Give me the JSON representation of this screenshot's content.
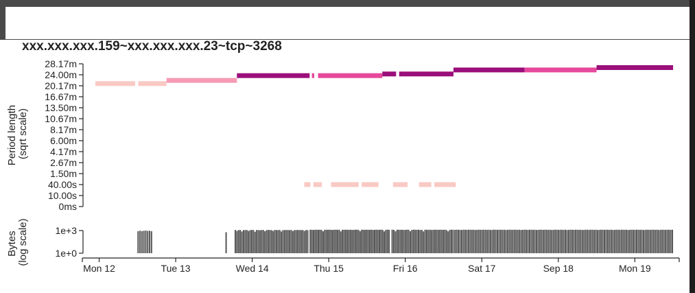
{
  "header": {
    "title": "xxx.xxx.xxx.159~xxx.xxx.xxx.23~tcp~3268"
  },
  "chart_data": [
    {
      "type": "timeline-segments",
      "ylabel": [
        "Period length",
        "(sqrt scale)"
      ],
      "yscale": "sqrt",
      "yticks": [
        "28.17m",
        "24.00m",
        "20.17m",
        "16.67m",
        "13.50m",
        "10.67m",
        "8.17m",
        "6.00m",
        "4.17m",
        "2.67m",
        "1.50m",
        "40.00s",
        "10.00s",
        "0ms"
      ],
      "x_range": [
        -0.22,
        7.58
      ],
      "segments": [
        {
          "x0": -0.05,
          "x1": 0.47,
          "y": "20.9m",
          "color": "#f9c9c4"
        },
        {
          "x0": 0.51,
          "x1": 0.88,
          "y": "20.9m",
          "color": "#f9c9c4"
        },
        {
          "x0": 0.88,
          "x1": 1.8,
          "y": "22.0m",
          "color": "#f69ab4"
        },
        {
          "x0": 1.8,
          "x1": 2.75,
          "y": "23.7m",
          "color": "#9b0f7a"
        },
        {
          "x0": 2.78,
          "x1": 2.81,
          "y": "23.7m",
          "color": "#e6489b"
        },
        {
          "x0": 2.86,
          "x1": 3.7,
          "y": "23.7m",
          "color": "#e6489b"
        },
        {
          "x0": 3.7,
          "x1": 3.88,
          "y": "24.3m",
          "color": "#9b0f7a"
        },
        {
          "x0": 3.92,
          "x1": 4.63,
          "y": "24.3m",
          "color": "#9b0f7a"
        },
        {
          "x0": 4.63,
          "x1": 5.56,
          "y": "25.8m",
          "color": "#9b0f7a"
        },
        {
          "x0": 5.56,
          "x1": 6.5,
          "y": "25.8m",
          "color": "#e6489b"
        },
        {
          "x0": 6.5,
          "x1": 7.5,
          "y": "26.7m",
          "color": "#9b0f7a"
        },
        {
          "x0": 2.68,
          "x1": 2.76,
          "y": "40.00s",
          "color": "#f9c9c4"
        },
        {
          "x0": 2.8,
          "x1": 2.91,
          "y": "40.00s",
          "color": "#f9c9c4"
        },
        {
          "x0": 3.03,
          "x1": 3.39,
          "y": "40.00s",
          "color": "#f9c9c4"
        },
        {
          "x0": 3.43,
          "x1": 3.65,
          "y": "40.00s",
          "color": "#f9c9c4"
        },
        {
          "x0": 3.84,
          "x1": 4.03,
          "y": "40.00s",
          "color": "#f9c9c4"
        },
        {
          "x0": 4.18,
          "x1": 4.34,
          "y": "40.00s",
          "color": "#f9c9c4"
        },
        {
          "x0": 4.38,
          "x1": 4.66,
          "y": "40.00s",
          "color": "#f9c9c4"
        }
      ]
    },
    {
      "type": "bar",
      "ylabel": [
        "Bytes",
        "(log scale)"
      ],
      "yscale": "log",
      "yticks": [
        "1e+3",
        "1e+0"
      ],
      "xticks": [
        "Mon 12",
        "Tue 13",
        "Wed 14",
        "Thu 15",
        "Fri 16",
        "Sat 17",
        "Sep 18",
        "Mon 19"
      ],
      "x_range": [
        -0.22,
        7.58
      ],
      "bar_color": "#555555",
      "bar_width": 0.018,
      "groups": [
        {
          "x0": 0.5,
          "x1": 0.7,
          "step": 0.025,
          "values": [
            830,
            950,
            850,
            940,
            1000,
            900,
            960,
            820
          ]
        },
        {
          "x0": 1.65,
          "x1": 1.66,
          "step": 0.025,
          "values": [
            600
          ]
        },
        {
          "x0": 1.77,
          "x1": 2.73,
          "step": 0.0215,
          "values": [
            1200,
            900,
            1150,
            1200,
            750,
            1180,
            1150,
            1200,
            880,
            1150,
            1200,
            1180,
            700,
            1200,
            1150,
            1100,
            1180,
            1200,
            820,
            1150,
            1200,
            1180,
            1150,
            900,
            1200,
            1180,
            1150,
            1200,
            760,
            1180,
            1150,
            1200,
            1180,
            1150,
            1200,
            880,
            1180,
            1150,
            1200,
            1180,
            1150,
            1200,
            900,
            1180,
            1150
          ]
        },
        {
          "x0": 2.75,
          "x1": 3.8,
          "step": 0.021,
          "values": [
            1300,
            1250,
            1200,
            1300,
            1280,
            1250,
            1300,
            1200,
            800,
            1300,
            1250,
            1280,
            1300,
            1250,
            1200,
            1300,
            1280,
            1250,
            1300,
            780,
            1280,
            1250,
            1300,
            1280,
            1250,
            1300,
            1200,
            1250,
            1300,
            1280,
            1250,
            820,
            1300,
            1280,
            1250,
            1300,
            1280,
            1250,
            1300,
            1200,
            1250,
            1300,
            1280,
            1250,
            1300,
            1280,
            780,
            1250,
            1300,
            1280
          ]
        },
        {
          "x0": 3.82,
          "x1": 4.64,
          "step": 0.0215,
          "values": [
            1300,
            1250,
            800,
            1300,
            1280,
            1250,
            1300,
            1200,
            1250,
            1300,
            1280,
            820,
            1250,
            1300,
            1280,
            1250,
            1300,
            1200,
            1250,
            780,
            1300,
            1280,
            1250,
            1300,
            1200,
            1250,
            1300,
            1280,
            1250,
            1300,
            1280,
            1250,
            1300,
            1200,
            800,
            1250,
            1300,
            1280
          ]
        },
        {
          "x0": 4.64,
          "x1": 7.5,
          "step": 0.0222,
          "values": [
            1250,
            1300,
            1280,
            1250,
            1200,
            1300,
            1280,
            1250,
            1300,
            1280,
            1250,
            1300,
            1200,
            1250,
            1300,
            1280,
            1250,
            1300,
            1280,
            1250,
            1300,
            1200,
            1250,
            1300,
            1280,
            1250,
            1300,
            1280,
            1250,
            1300,
            1200,
            1250,
            1300,
            1280,
            1250,
            1300,
            1280,
            1250,
            1300,
            1200,
            1250,
            1300,
            1280,
            1250,
            1300,
            1280,
            1250,
            1300,
            1200,
            1250,
            1300,
            1280,
            1250,
            1300,
            1280,
            1250,
            1300,
            1200,
            1250,
            1300,
            1280,
            1250,
            1300,
            1280,
            1250,
            1300,
            1200,
            1250,
            1300,
            1280,
            1250,
            1300,
            1280,
            1250,
            1300,
            1200,
            1250,
            1300,
            1280,
            1250,
            1300,
            1280,
            1250,
            1300,
            1200,
            1250,
            1300,
            1280,
            1250,
            1300,
            1280,
            1250,
            1300,
            1200,
            1250,
            1300,
            1280,
            1250,
            1300,
            1280,
            1250,
            1300,
            1200,
            1250,
            1300,
            1280,
            1250,
            1300,
            1280,
            1250,
            1300,
            1200,
            1250,
            1300,
            1280,
            1250,
            1300,
            1280,
            1250,
            1300,
            1200,
            1250,
            1300,
            1280,
            1250,
            1300,
            1280,
            1250,
            1300
          ]
        }
      ]
    }
  ]
}
